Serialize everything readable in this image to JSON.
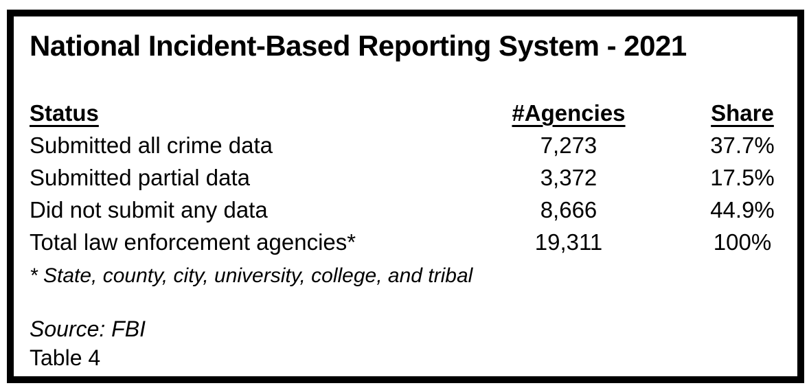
{
  "figure": {
    "title": "National Incident-Based Reporting System - 2021",
    "columns": [
      "Status",
      "#Agencies",
      "Share"
    ],
    "rows": [
      {
        "status": "Submitted all crime data",
        "agencies": "7,273",
        "share": "37.7%"
      },
      {
        "status": "Submitted partial data",
        "agencies": "3,372",
        "share": "17.5%"
      },
      {
        "status": "Did not submit any data",
        "agencies": "8,666",
        "share": "44.9%"
      },
      {
        "status": "Total law enforcement agencies*",
        "agencies": "19,311",
        "share": "100%"
      }
    ],
    "footnote": "* State, county, city, university, college, and tribal",
    "source_line": "Source: FBI",
    "table_label": "Table 4",
    "colors": {
      "text": "#000000",
      "background": "#ffffff",
      "border": "#000000"
    }
  },
  "chart_data": {
    "type": "table",
    "title": "National Incident-Based Reporting System - 2021",
    "columns": [
      "Status",
      "#Agencies",
      "Share"
    ],
    "rows": [
      [
        "Submitted all crime data",
        7273,
        "37.7%"
      ],
      [
        "Submitted partial data",
        3372,
        "17.5%"
      ],
      [
        "Did not submit any data",
        8666,
        "44.9%"
      ],
      [
        "Total law enforcement agencies*",
        19311,
        "100%"
      ]
    ],
    "footnote": "* State, county, city, university, college, and tribal",
    "source": "FBI",
    "table_label": "Table 4"
  }
}
